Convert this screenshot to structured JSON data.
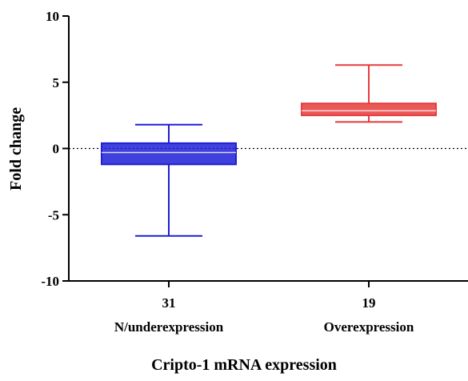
{
  "chart_data": {
    "type": "box",
    "xlabel": "Cripto-1 mRNA expression",
    "ylabel": "Fold change",
    "ylim": [
      -10,
      10
    ],
    "yticks": [
      10,
      5,
      0,
      -5,
      -10
    ],
    "reference_line": 0,
    "grid": false,
    "groups": [
      {
        "count": "31",
        "label": "N/underexpression",
        "color": "#1f1fd6",
        "min": -6.6,
        "q1": -1.2,
        "median": -0.3,
        "q3": 0.4,
        "max": 1.8
      },
      {
        "count": "19",
        "label": "Overexpression",
        "color": "#e83b3b",
        "min": 2.0,
        "q1": 2.5,
        "median": 2.85,
        "q3": 3.4,
        "max": 6.3
      }
    ]
  }
}
